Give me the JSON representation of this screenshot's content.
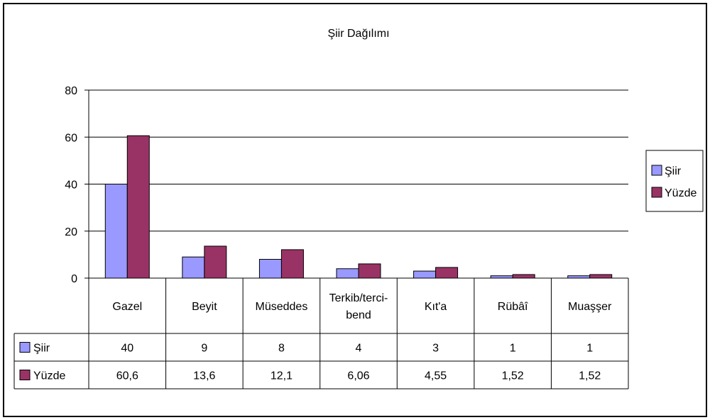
{
  "chart_data": {
    "type": "bar",
    "title": "Şiir Dağılımı",
    "xlabel": "",
    "ylabel": "",
    "categories": [
      [
        "Gazel"
      ],
      [
        "Beyit"
      ],
      [
        "Müseddes"
      ],
      [
        "Terkib/terci-",
        "bend"
      ],
      [
        "Kıt'a"
      ],
      [
        "Rübâî"
      ],
      [
        "Muaşşer"
      ]
    ],
    "series": [
      {
        "name": "Şiir",
        "color": "#9999ff",
        "values": [
          40,
          9,
          8,
          4,
          3,
          1,
          1
        ],
        "labels": [
          "40",
          "9",
          "8",
          "4",
          "3",
          "1",
          "1"
        ]
      },
      {
        "name": "Yüzde",
        "color": "#993366",
        "values": [
          60.6,
          13.6,
          12.1,
          6.06,
          4.55,
          1.52,
          1.52
        ],
        "labels": [
          "60,6",
          "13,6",
          "12,1",
          "6,06",
          "4,55",
          "1,52",
          "1,52"
        ]
      }
    ],
    "ylim": [
      0,
      80
    ],
    "yticks": [
      0,
      20,
      40,
      60,
      80
    ],
    "grid": true,
    "legend": "right",
    "data_table": true
  }
}
